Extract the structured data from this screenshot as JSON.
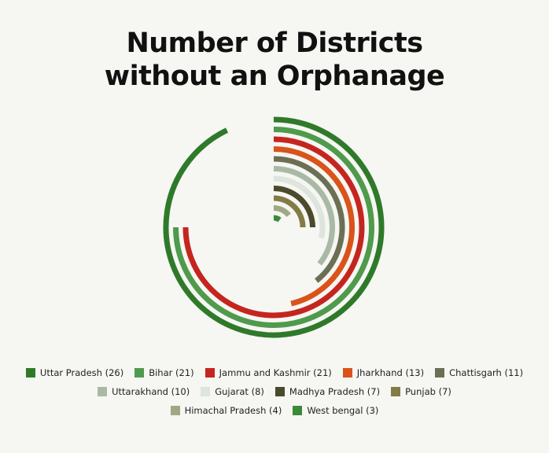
{
  "title_lines": [
    "Number of Districts",
    "without an Orphanage"
  ],
  "chart_data": {
    "type": "radial-bar",
    "title": "Number of Districts without an Orphanage",
    "max_value": 28,
    "series": [
      {
        "name": "Uttar Pradesh",
        "value": 26,
        "label": "Uttar Pradesh (26)",
        "color": "#2f7a2a"
      },
      {
        "name": "Bihar",
        "value": 21,
        "label": "Bihar (21)",
        "color": "#4f9a4c"
      },
      {
        "name": "Jammu and Kashmir",
        "value": 21,
        "label": "Jammu and Kashmir (21)",
        "color": "#c4261f"
      },
      {
        "name": "Jharkhand",
        "value": 13,
        "label": "Jharkhand (13)",
        "color": "#d9531a"
      },
      {
        "name": "Chattisgarh",
        "value": 11,
        "label": "Chattisgarh (11)",
        "color": "#6b7055"
      },
      {
        "name": "Uttarakhand",
        "value": 10,
        "label": "Uttarakhand (10)",
        "color": "#aab9a6"
      },
      {
        "name": "Gujarat",
        "value": 8,
        "label": "Gujarat (8)",
        "color": "#dde5dc"
      },
      {
        "name": "Madhya Pradesh",
        "value": 7,
        "label": "Madhya Pradesh (7)",
        "color": "#4a4a2c"
      },
      {
        "name": "Punjab",
        "value": 7,
        "label": "Punjab (7)",
        "color": "#837a45"
      },
      {
        "name": "Himachal Pradesh",
        "value": 4,
        "label": "Himachal Pradesh (4)",
        "color": "#9fa884"
      },
      {
        "name": "West bengal",
        "value": 3,
        "label": "West bengal (3)",
        "color": "#3a8a37"
      }
    ],
    "legend_rows": [
      [
        0,
        1,
        2,
        3,
        4
      ],
      [
        5,
        6,
        7,
        8
      ],
      [
        9,
        10
      ]
    ]
  }
}
